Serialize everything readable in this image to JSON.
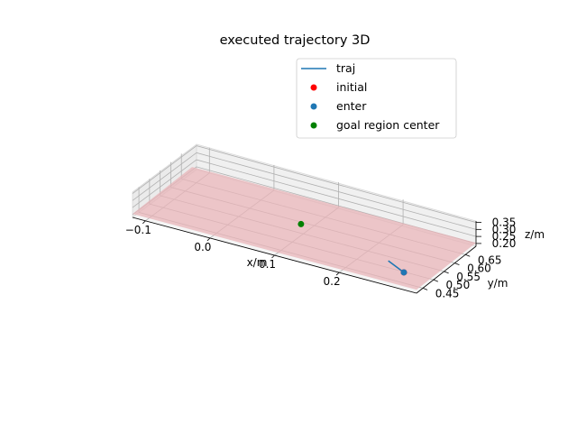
{
  "chart_data": {
    "type": "scatter",
    "projection": "3d",
    "title": "executed trajectory 3D",
    "xlabel": "x/m",
    "ylabel": "y/m",
    "zlabel": "z/m",
    "xlim": [
      -0.12,
      0.32
    ],
    "ylim": [
      0.42,
      0.7
    ],
    "zlim": [
      0.18,
      0.36
    ],
    "x_ticks": [
      "−0.1",
      "0.0",
      "0.1",
      "0.2"
    ],
    "y_ticks": [
      "0.45",
      "0.50",
      "0.55",
      "0.60",
      "0.65"
    ],
    "z_ticks": [
      "0.20",
      "0.25",
      "0.30",
      "0.35"
    ],
    "grid": true,
    "legend_position": "top-right",
    "goal_region_color": "#e8b4b8",
    "series": [
      {
        "name": "traj",
        "kind": "line",
        "color": "#1f77b4",
        "x": [
          0.245,
          0.28
        ],
        "y": [
          0.515,
          0.482
        ],
        "z": [
          0.205,
          0.205
        ]
      },
      {
        "name": "initial",
        "kind": "point",
        "color": "#ff0000",
        "x": [
          0.28
        ],
        "y": [
          0.482
        ],
        "z": [
          0.205
        ]
      },
      {
        "name": "enter",
        "kind": "point",
        "color": "#1f77b4",
        "x": [
          0.28
        ],
        "y": [
          0.482
        ],
        "z": [
          0.205
        ]
      },
      {
        "name": "goal region center",
        "kind": "point",
        "color": "#008000",
        "x": [
          0.09
        ],
        "y": [
          0.575
        ],
        "z": [
          0.205
        ]
      }
    ]
  }
}
